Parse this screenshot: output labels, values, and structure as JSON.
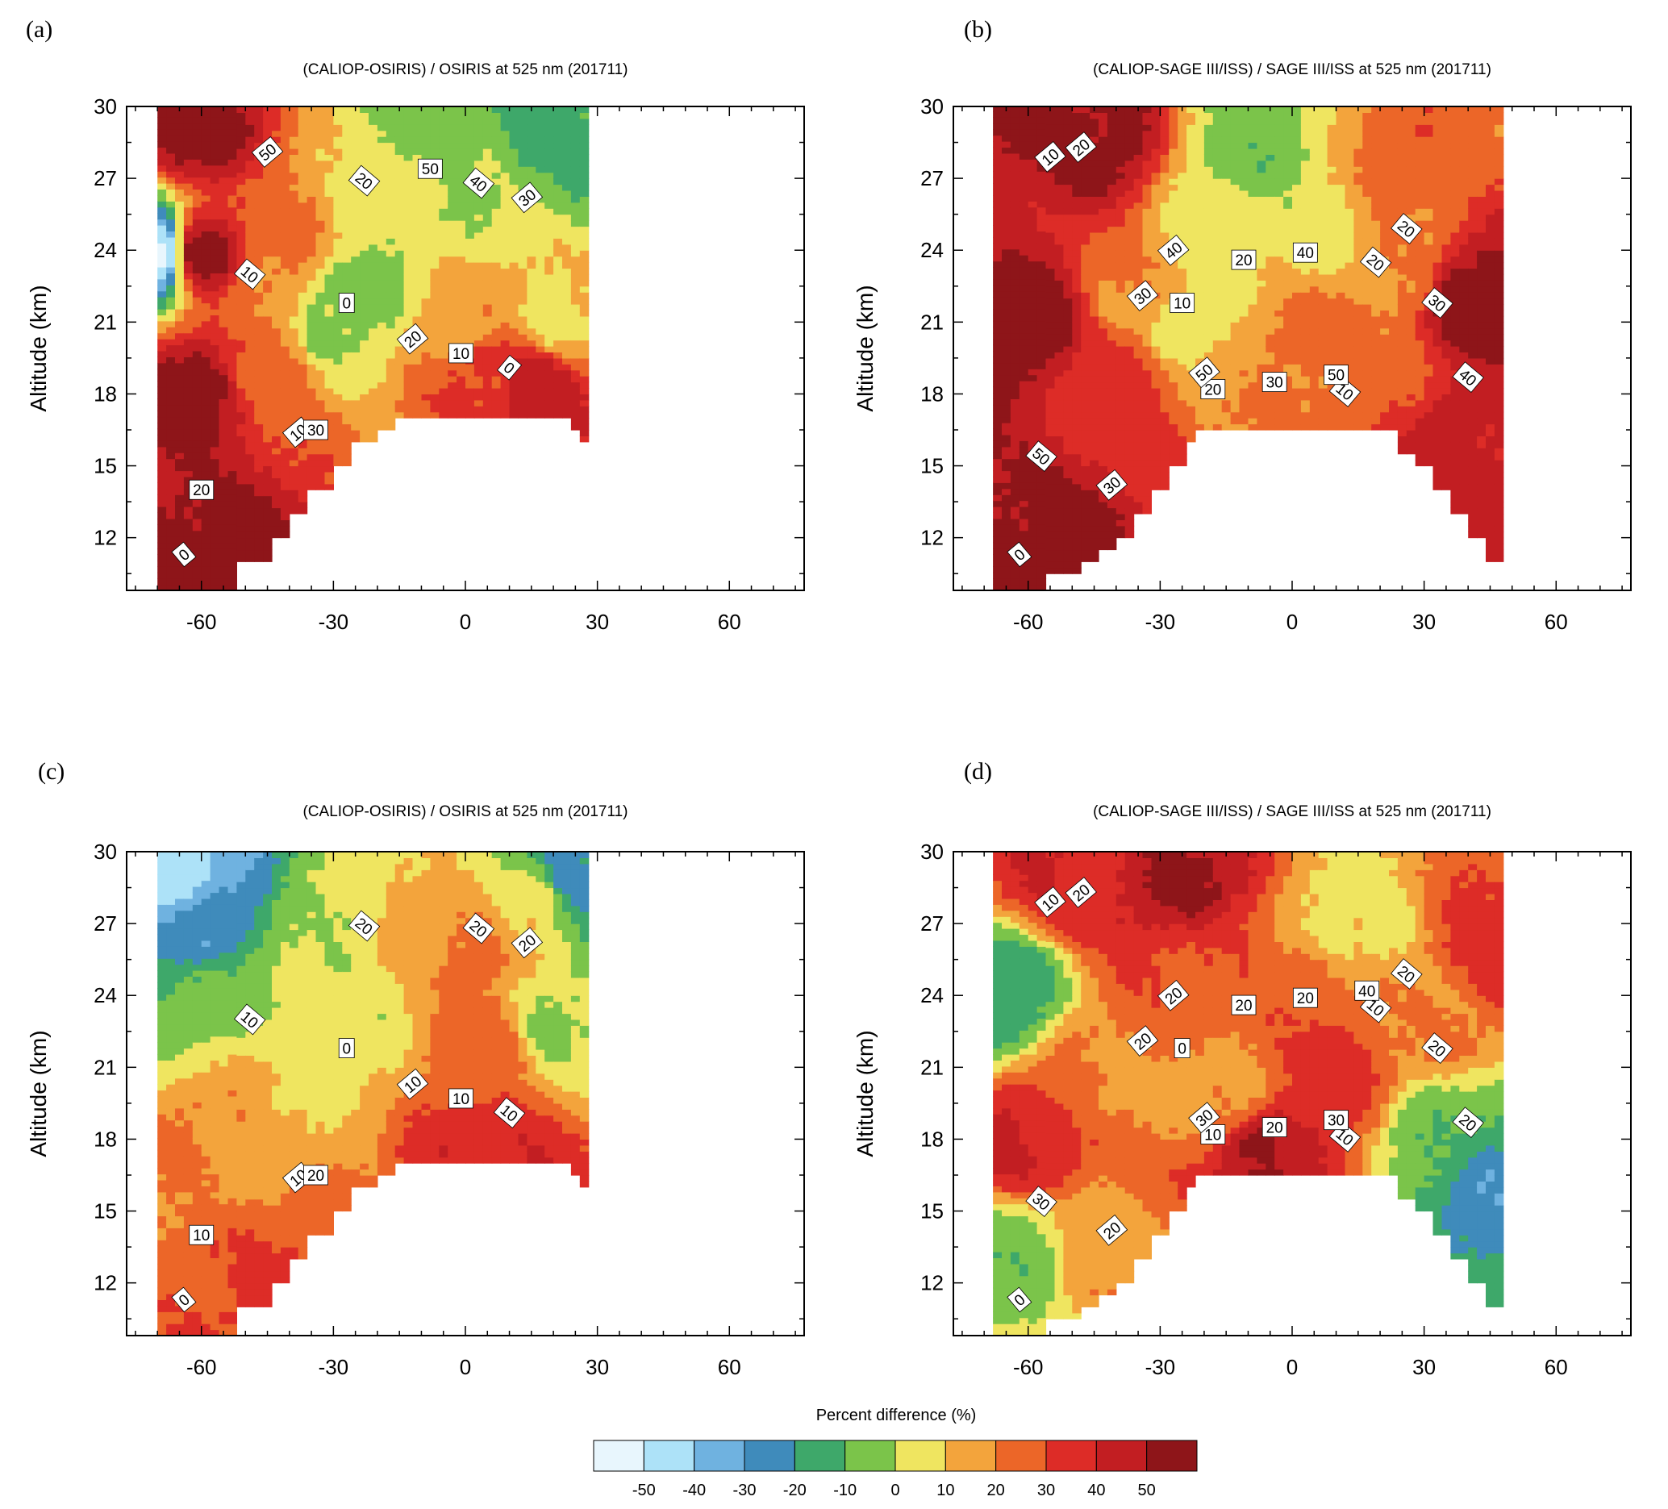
{
  "figure": {
    "colorbar": {
      "title": "Percent difference (%)",
      "levels": [
        -50,
        -40,
        -30,
        -20,
        -10,
        0,
        10,
        20,
        30,
        40,
        50
      ],
      "colors": [
        "#e8f6fd",
        "#ade2f8",
        "#6fb2e0",
        "#3f8bbb",
        "#3ea86a",
        "#7bc44a",
        "#efe560",
        "#f3a43c",
        "#ec6628",
        "#dd2c27",
        "#c21e22",
        "#8e1519"
      ]
    }
  },
  "chart_data": [
    {
      "type": "heatmap",
      "panel_label": "(a)",
      "title": "(CALIOP-OSIRIS) / OSIRIS at 525 nm (201711)",
      "xlabel": "",
      "ylabel": "Altitude (km)",
      "xlim": [
        -77,
        77
      ],
      "ylim": [
        9.8,
        30
      ],
      "xticks": [
        -60,
        -30,
        0,
        30,
        60
      ],
      "yticks": [
        12,
        15,
        18,
        21,
        24,
        27,
        30
      ],
      "data_lat_range": [
        -70,
        27
      ],
      "contour_labels": [
        "0",
        "0",
        "0",
        "10",
        "10",
        "10",
        "20",
        "20",
        "20",
        "30",
        "30",
        "40",
        "50",
        "50"
      ],
      "values": [
        {
          "lat": -60,
          "alt": 12,
          "value": 55
        },
        {
          "lat": -60,
          "alt": 18,
          "value": 55
        },
        {
          "lat": -60,
          "alt": 24,
          "value": 55
        },
        {
          "lat": -60,
          "alt": 29,
          "value": 55
        },
        {
          "lat": -45,
          "alt": 19,
          "value": 25
        },
        {
          "lat": -45,
          "alt": 22,
          "value": 20
        },
        {
          "lat": -40,
          "alt": 25,
          "value": 20
        },
        {
          "lat": -30,
          "alt": 21,
          "value": 0
        },
        {
          "lat": -25,
          "alt": 22,
          "value": -5
        },
        {
          "lat": -20,
          "alt": 26,
          "value": 5
        },
        {
          "lat": -10,
          "alt": 27,
          "value": 5
        },
        {
          "lat": -10,
          "alt": 29,
          "value": -5
        },
        {
          "lat": 0,
          "alt": 26,
          "value": 0
        },
        {
          "lat": 0,
          "alt": 21,
          "value": 15
        },
        {
          "lat": 5,
          "alt": 19,
          "value": 35
        },
        {
          "lat": 15,
          "alt": 18.5,
          "value": 45
        },
        {
          "lat": 20,
          "alt": 21,
          "value": 10
        },
        {
          "lat": 20,
          "alt": 29,
          "value": -15
        },
        {
          "lat": -70,
          "alt": 24,
          "value": -50
        }
      ]
    },
    {
      "type": "heatmap",
      "panel_label": "(b)",
      "title": "(CALIOP-SAGE III/ISS) / SAGE III/ISS at 525 nm (201711)",
      "xlabel": "",
      "ylabel": "Altitude (km)",
      "xlim": [
        -77,
        77
      ],
      "ylim": [
        9.8,
        30
      ],
      "xticks": [
        -60,
        -30,
        0,
        30,
        60
      ],
      "yticks": [
        12,
        15,
        18,
        21,
        24,
        27,
        30
      ],
      "data_lat_range": [
        -68,
        48
      ],
      "contour_labels": [
        "0",
        "10",
        "10",
        "10",
        "20",
        "20",
        "20",
        "20",
        "20",
        "30",
        "30",
        "30",
        "30",
        "40",
        "40",
        "40",
        "50",
        "50",
        "50"
      ],
      "values": [
        {
          "lat": -60,
          "alt": 12,
          "value": 55
        },
        {
          "lat": -60,
          "alt": 21,
          "value": 55
        },
        {
          "lat": -45,
          "alt": 29,
          "value": 55
        },
        {
          "lat": -40,
          "alt": 19,
          "value": 35
        },
        {
          "lat": -35,
          "alt": 22,
          "value": 20
        },
        {
          "lat": -25,
          "alt": 21,
          "value": 5
        },
        {
          "lat": -15,
          "alt": 25,
          "value": 5
        },
        {
          "lat": -10,
          "alt": 28,
          "value": -5
        },
        {
          "lat": 5,
          "alt": 25,
          "value": 5
        },
        {
          "lat": 10,
          "alt": 20,
          "value": 25
        },
        {
          "lat": 20,
          "alt": 19,
          "value": 25
        },
        {
          "lat": 25,
          "alt": 23,
          "value": 20
        },
        {
          "lat": 28,
          "alt": 28,
          "value": 25
        },
        {
          "lat": 40,
          "alt": 22,
          "value": 55
        },
        {
          "lat": 40,
          "alt": 16,
          "value": 45
        }
      ]
    },
    {
      "type": "heatmap",
      "panel_label": "(c)",
      "title": "(CALIOP-OSIRIS) / OSIRIS at 525 nm (201711)",
      "xlabel": "",
      "ylabel": "Altitude (km)",
      "xlim": [
        -77,
        77
      ],
      "ylim": [
        9.8,
        30
      ],
      "xticks": [
        -60,
        -30,
        0,
        30,
        60
      ],
      "yticks": [
        12,
        15,
        18,
        21,
        24,
        27,
        30
      ],
      "data_lat_range": [
        -70,
        27
      ],
      "contour_labels": [
        "0",
        "0",
        "10",
        "10",
        "10",
        "10",
        "10",
        "10",
        "20",
        "20",
        "20",
        "20"
      ],
      "values": [
        {
          "lat": -65,
          "alt": 29,
          "value": -45
        },
        {
          "lat": -60,
          "alt": 27,
          "value": -25
        },
        {
          "lat": -55,
          "alt": 24,
          "value": -5
        },
        {
          "lat": -55,
          "alt": 18,
          "value": 20
        },
        {
          "lat": -50,
          "alt": 12,
          "value": 30
        },
        {
          "lat": -40,
          "alt": 21,
          "value": 10
        },
        {
          "lat": -30,
          "alt": 27,
          "value": 0
        },
        {
          "lat": -25,
          "alt": 23,
          "value": 5
        },
        {
          "lat": -10,
          "alt": 26,
          "value": 15
        },
        {
          "lat": 0,
          "alt": 26,
          "value": 25
        },
        {
          "lat": 5,
          "alt": 22,
          "value": 25
        },
        {
          "lat": 5,
          "alt": 17.5,
          "value": 40
        },
        {
          "lat": 15,
          "alt": 28,
          "value": 5
        },
        {
          "lat": 20,
          "alt": 23,
          "value": 0
        },
        {
          "lat": 25,
          "alt": 29,
          "value": -25
        }
      ]
    },
    {
      "type": "heatmap",
      "panel_label": "(d)",
      "title": "(CALIOP-SAGE III/ISS) / SAGE III/ISS at 525 nm (201711)",
      "xlabel": "",
      "ylabel": "Altitude (km)",
      "xlim": [
        -77,
        77
      ],
      "ylim": [
        9.8,
        30
      ],
      "xticks": [
        -60,
        -30,
        0,
        30,
        60
      ],
      "yticks": [
        12,
        15,
        18,
        21,
        24,
        27,
        30
      ],
      "data_lat_range": [
        -68,
        48
      ],
      "contour_labels": [
        "0",
        "0",
        "10",
        "10",
        "10",
        "10",
        "20",
        "20",
        "20",
        "20",
        "20",
        "20",
        "20",
        "20",
        "20",
        "20",
        "30",
        "30",
        "30",
        "40"
      ],
      "values": [
        {
          "lat": -65,
          "alt": 13,
          "value": -5
        },
        {
          "lat": -65,
          "alt": 24,
          "value": -15
        },
        {
          "lat": -60,
          "alt": 18,
          "value": 40
        },
        {
          "lat": -50,
          "alt": 29,
          "value": 40
        },
        {
          "lat": -45,
          "alt": 21,
          "value": 20
        },
        {
          "lat": -40,
          "alt": 13,
          "value": 15
        },
        {
          "lat": -25,
          "alt": 29,
          "value": 50
        },
        {
          "lat": -20,
          "alt": 25,
          "value": 30
        },
        {
          "lat": -15,
          "alt": 20,
          "value": 15
        },
        {
          "lat": -5,
          "alt": 17.5,
          "value": 50
        },
        {
          "lat": 0,
          "alt": 24,
          "value": 25
        },
        {
          "lat": 10,
          "alt": 21,
          "value": 35
        },
        {
          "lat": 15,
          "alt": 27,
          "value": 5
        },
        {
          "lat": 30,
          "alt": 23,
          "value": 20
        },
        {
          "lat": 35,
          "alt": 18,
          "value": -10
        },
        {
          "lat": 45,
          "alt": 16,
          "value": -25
        },
        {
          "lat": 45,
          "alt": 26,
          "value": 35
        }
      ]
    }
  ]
}
